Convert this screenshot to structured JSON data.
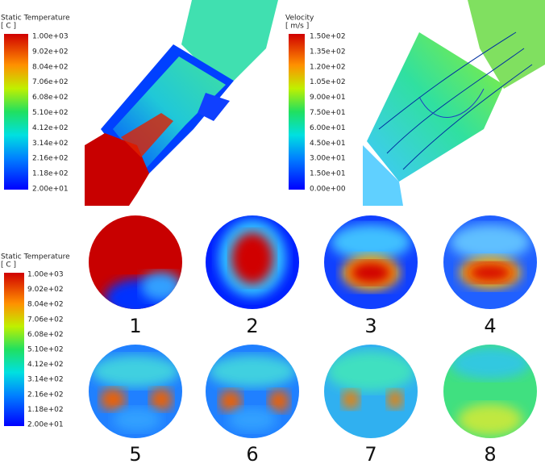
{
  "temperature_legend": {
    "title": "Static Temperature",
    "unit": "[ C ]",
    "labels": [
      "1.00e+03",
      "9.02e+02",
      "8.04e+02",
      "7.06e+02",
      "6.08e+02",
      "5.10e+02",
      "4.12e+02",
      "3.14e+02",
      "2.16e+02",
      "1.18e+02",
      "2.00e+01"
    ]
  },
  "velocity_legend": {
    "title": "Velocity",
    "unit": "[ m/s ]",
    "labels": [
      "1.50e+02",
      "1.35e+02",
      "1.20e+02",
      "1.05e+02",
      "9.00e+01",
      "7.50e+01",
      "6.00e+01",
      "4.50e+01",
      "3.00e+01",
      "1.50e+01",
      "0.00e+00"
    ]
  },
  "section_legend": {
    "title": "Static Temperature",
    "unit": "[ C ]",
    "labels": [
      "1.00e+03",
      "9.02e+02",
      "8.04e+02",
      "7.06e+02",
      "6.08e+02",
      "5.10e+02",
      "4.12e+02",
      "3.14e+02",
      "2.16e+02",
      "1.18e+02",
      "2.00e+01"
    ]
  },
  "sections": [
    "1",
    "2",
    "3",
    "4",
    "5",
    "6",
    "7",
    "8"
  ]
}
